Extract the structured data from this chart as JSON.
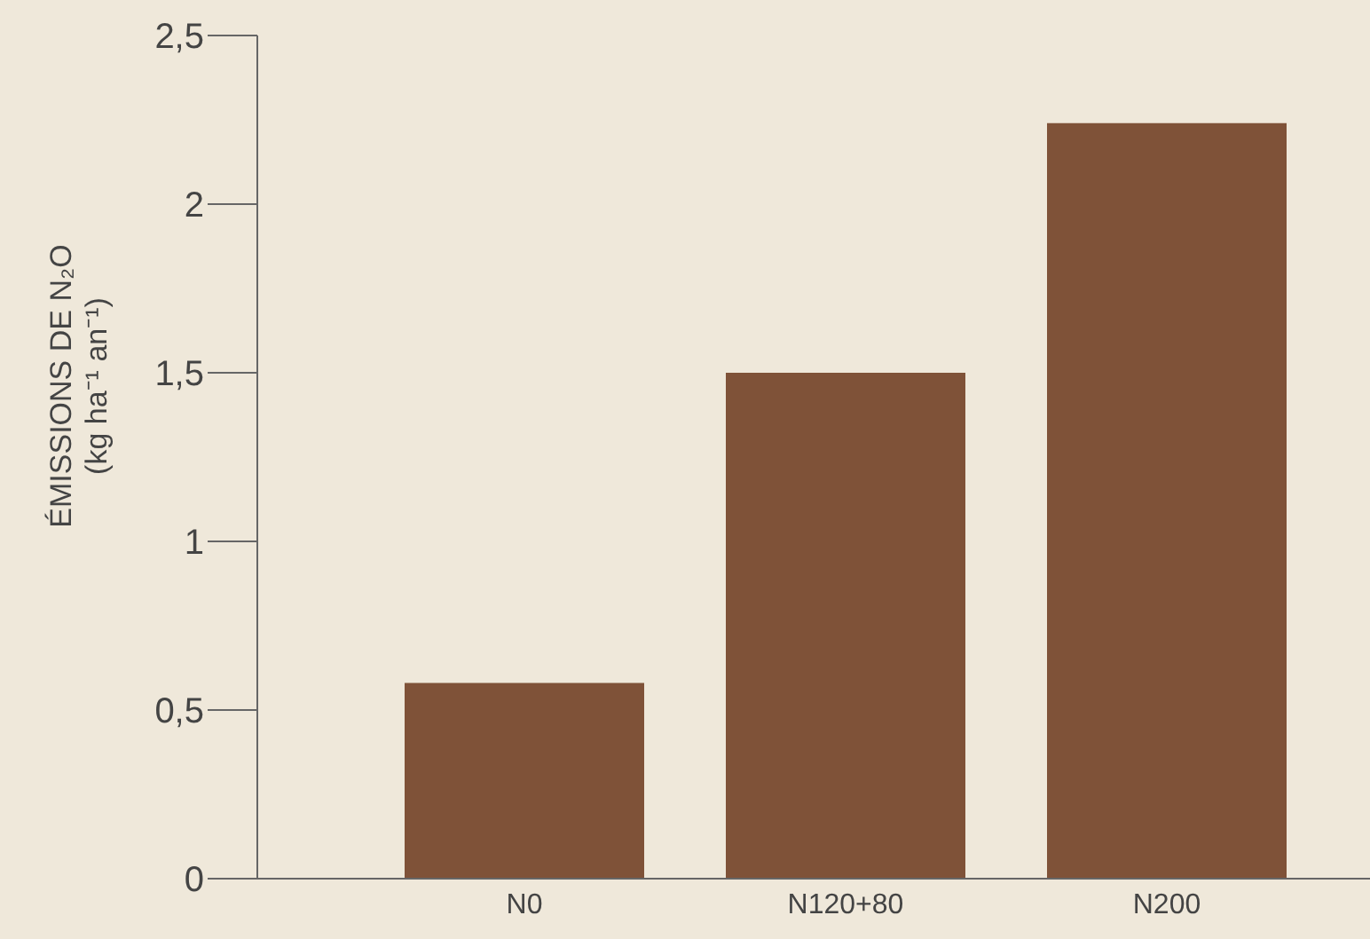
{
  "chart_data": {
    "type": "bar",
    "ylabel": "ÉMISSIONS DE N₂O\n(kg ha⁻¹ an⁻¹)",
    "categories": [
      "N0",
      "N120+80",
      "N200"
    ],
    "values": [
      0.58,
      1.5,
      2.24
    ],
    "color": "#7f5238",
    "ylim": [
      0,
      2.5
    ],
    "yticks": [
      0,
      {
        "value": 0.5,
        "label": "0,5"
      },
      1,
      {
        "value": 1.5,
        "label": "1,5"
      },
      2,
      {
        "value": 2.5,
        "label": "2,5"
      }
    ],
    "grid": false
  }
}
